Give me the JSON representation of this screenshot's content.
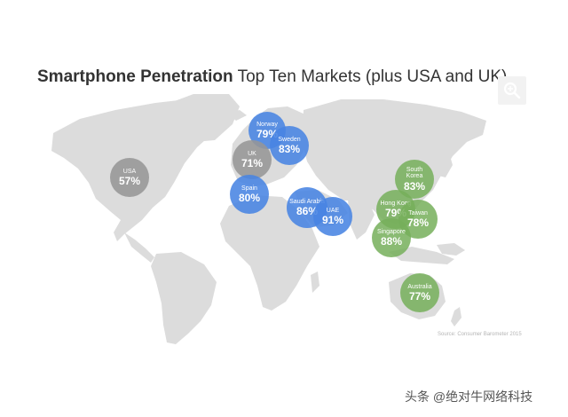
{
  "title": {
    "bold": "Smartphone Penetration",
    "rest": " Top Ten Markets (plus USA and UK)"
  },
  "colors": {
    "blue": "#4884e2",
    "gray": "#969696",
    "green": "#76af5a",
    "land": "#dcdcdc"
  },
  "markets": [
    {
      "name": "Norway",
      "value": "79%",
      "group": "blue"
    },
    {
      "name": "Sweden",
      "value": "83%",
      "group": "blue"
    },
    {
      "name": "UK",
      "value": "71%",
      "group": "gray"
    },
    {
      "name": "USA",
      "value": "57%",
      "group": "gray"
    },
    {
      "name": "Spain",
      "value": "80%",
      "group": "blue"
    },
    {
      "name": "Saudi Arabia",
      "value": "86%",
      "group": "blue"
    },
    {
      "name": "UAE",
      "value": "91%",
      "group": "blue"
    },
    {
      "name": "South Korea",
      "value": "83%",
      "group": "green"
    },
    {
      "name": "Hong Kong",
      "value": "79%",
      "group": "green"
    },
    {
      "name": "Taiwan",
      "value": "78%",
      "group": "green"
    },
    {
      "name": "Singapore",
      "value": "88%",
      "group": "green"
    },
    {
      "name": "Australia",
      "value": "77%",
      "group": "green"
    }
  ],
  "source": "Source: Consumer Barometer 2015",
  "watermark": "头条 @绝对牛网络科技",
  "icons": {
    "zoom": "zoom-in-icon"
  }
}
